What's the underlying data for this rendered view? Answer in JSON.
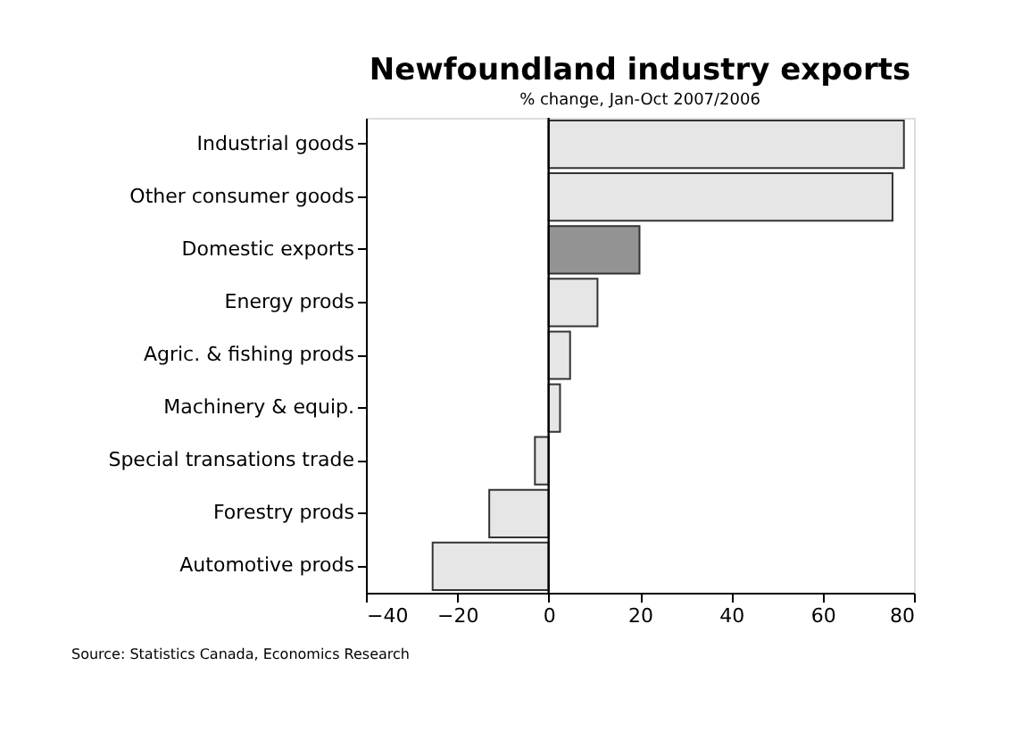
{
  "chart_data": {
    "type": "bar",
    "orientation": "horizontal",
    "title": "Newfoundland industry exports",
    "subtitle": "% change, Jan-Oct 2007/2006",
    "categories": [
      "Industrial goods",
      "Other consumer goods",
      "Domestic exports",
      "Energy prods",
      "Agric. & fishing prods",
      "Machinery & equip.",
      "Special transations trade",
      "Forestry prods",
      "Automotive prods"
    ],
    "values": [
      77.8,
      75.3,
      19.9,
      10.7,
      4.7,
      2.5,
      -3.0,
      -13.0,
      -25.4
    ],
    "colors": [
      "#e6e6e6",
      "#e6e6e6",
      "#939393",
      "#e6e6e6",
      "#e6e6e6",
      "#e6e6e6",
      "#e6e6e6",
      "#e6e6e6",
      "#e6e6e6"
    ],
    "xlim": [
      -40,
      80
    ],
    "xticks": [
      -40,
      -20,
      0,
      20,
      40,
      60,
      80
    ],
    "ref_lines": [
      {
        "axis": "x",
        "value": 0
      }
    ],
    "annotations": [
      "Source: Statistics Canada, Economics Research"
    ]
  }
}
